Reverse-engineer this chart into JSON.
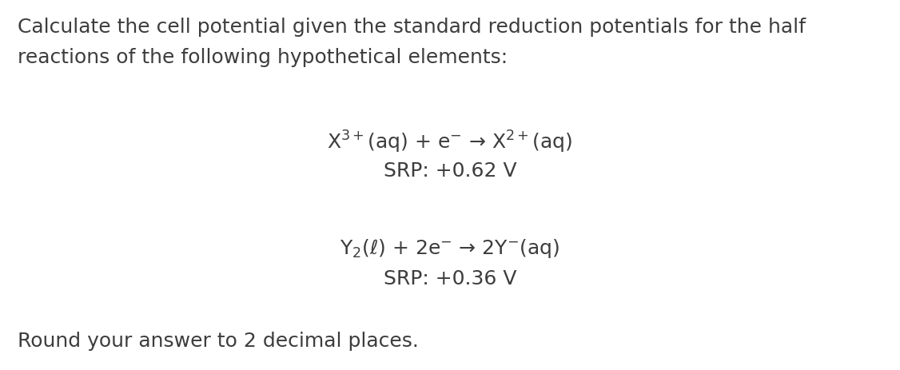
{
  "background_color": "#ffffff",
  "text_color": "#3d3d3d",
  "figsize": [
    11.26,
    4.63
  ],
  "dpi": 100,
  "title_line1": "Calculate the cell potential given the standard reduction potentials for the half",
  "title_line2": "reactions of the following hypothetical elements:",
  "reaction1_line1": "X$^{3+}$(aq) + e$^{-}$ → X$^{2+}$(aq)",
  "reaction1_line2": "SRP: +0.62 V",
  "reaction2_line1": "Y$_2$(ℓ) + 2e$^{-}$ → 2Y$^{-}$(aq)",
  "reaction2_line2": "SRP: +0.36 V",
  "footer": "Round your answer to 2 decimal places.",
  "main_fontsize": 18,
  "reaction_fontsize": 18,
  "footer_fontsize": 18
}
